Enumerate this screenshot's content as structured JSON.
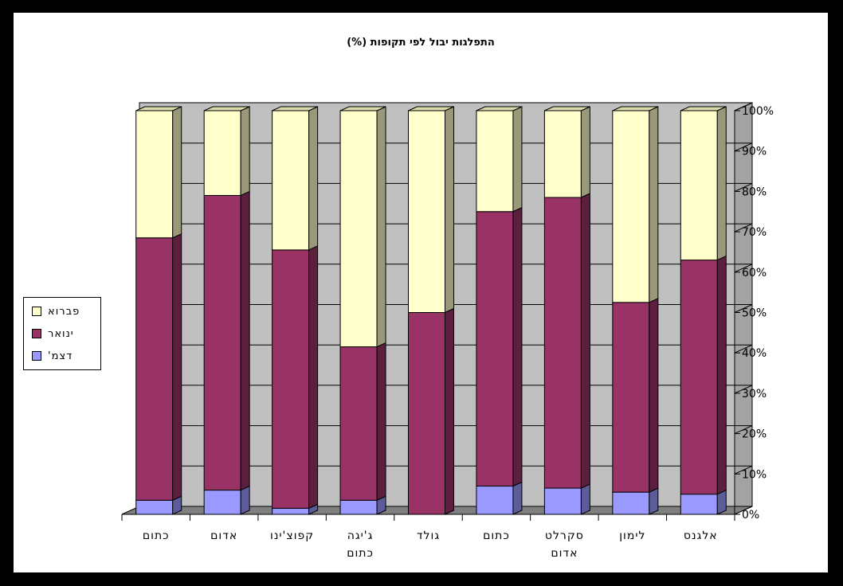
{
  "chart_data": {
    "type": "bar",
    "stacked": "percent",
    "title": "התפלגות יבול לפי תקופות (%)",
    "categories": [
      "אלגנס",
      "לימון",
      "סקרלט אדום",
      "כתום",
      "גולד",
      "ג'יגה כתום",
      "קפוצ'ינו",
      "אדום",
      "כתום"
    ],
    "category_lines": [
      [
        "אלגנס"
      ],
      [
        "לימון"
      ],
      [
        "סקרלט",
        "אדום"
      ],
      [
        "כתום"
      ],
      [
        "גולד"
      ],
      [
        "ג'יגה",
        "כתום"
      ],
      [
        "קפוצ'ינו"
      ],
      [
        "אדום"
      ],
      [
        "כתום"
      ]
    ],
    "series": [
      {
        "name": "דצמ'",
        "color": "#9999FF",
        "values": [
          5,
          5.5,
          6.5,
          7,
          0,
          3.5,
          1.5,
          6,
          3.5
        ]
      },
      {
        "name": "ינואר",
        "color": "#993366",
        "values": [
          58,
          47,
          72,
          68,
          50,
          38,
          64,
          73,
          65
        ]
      },
      {
        "name": "פברוא",
        "color": "#FFFFCC",
        "values": [
          37,
          47.5,
          21.5,
          25,
          50,
          58.5,
          34.5,
          21,
          31.5
        ]
      }
    ],
    "ylim": [
      0,
      100
    ],
    "yticks": [
      "0%",
      "10%",
      "20%",
      "30%",
      "40%",
      "50%",
      "60%",
      "70%",
      "80%",
      "90%",
      "100%"
    ],
    "y_axis_side": "right",
    "x_order": "right-to-left",
    "grid": true,
    "legend_position": "left"
  },
  "colors": {
    "wall": "#C0C0C0",
    "floor": "#808080",
    "grid": "#000000"
  }
}
